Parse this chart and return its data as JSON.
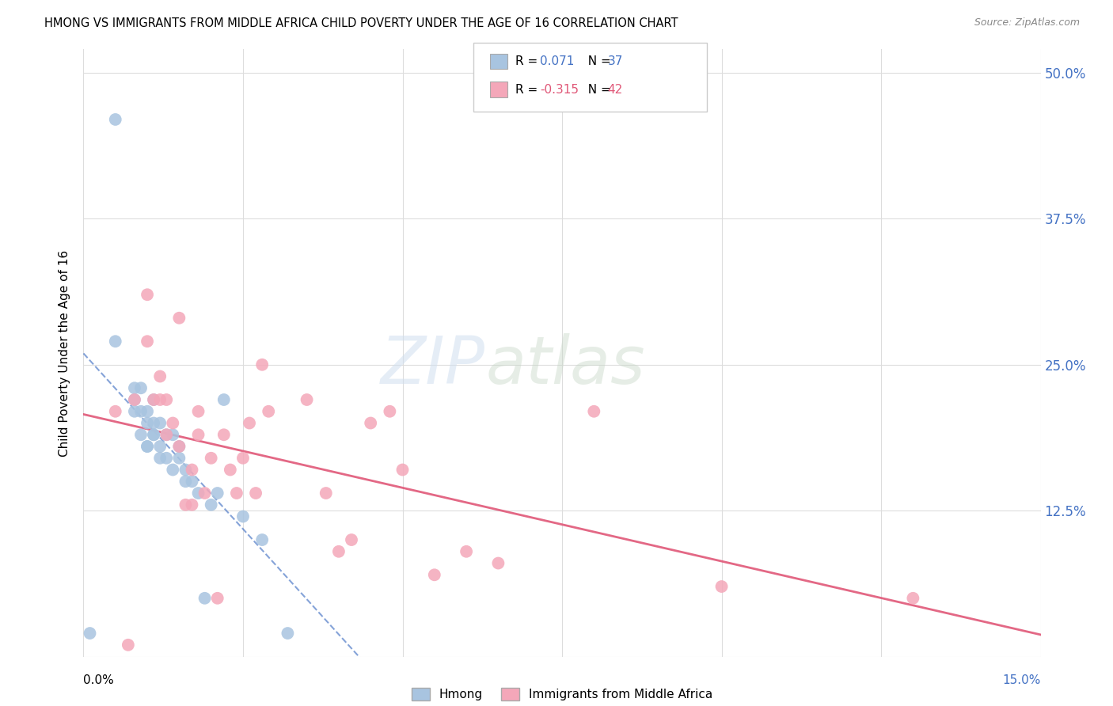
{
  "title": "HMONG VS IMMIGRANTS FROM MIDDLE AFRICA CHILD POVERTY UNDER THE AGE OF 16 CORRELATION CHART",
  "source": "Source: ZipAtlas.com",
  "ylabel": "Child Poverty Under the Age of 16",
  "ytick_labels": [
    "",
    "12.5%",
    "25.0%",
    "37.5%",
    "50.0%"
  ],
  "ytick_values": [
    0,
    12.5,
    25.0,
    37.5,
    50.0
  ],
  "xlim": [
    0,
    15
  ],
  "ylim": [
    0,
    52
  ],
  "legend_label_hmong": "Hmong",
  "legend_label_middle_africa": "Immigrants from Middle Africa",
  "hmong_color": "#a8c4e0",
  "hmong_line_color": "#4472c4",
  "middle_africa_color": "#f4a7b9",
  "middle_africa_line_color": "#e05878",
  "watermark_zip": "ZIP",
  "watermark_atlas": "atlas",
  "background_color": "#ffffff",
  "grid_color": "#dddddd",
  "hmong_x": [
    0.1,
    0.5,
    0.5,
    0.8,
    0.8,
    0.8,
    0.9,
    0.9,
    0.9,
    1.0,
    1.0,
    1.0,
    1.0,
    1.1,
    1.1,
    1.1,
    1.1,
    1.2,
    1.2,
    1.2,
    1.3,
    1.3,
    1.4,
    1.4,
    1.5,
    1.5,
    1.6,
    1.6,
    1.7,
    1.8,
    1.9,
    2.0,
    2.1,
    2.2,
    2.5,
    2.8,
    3.2
  ],
  "hmong_y": [
    2.0,
    46.0,
    27.0,
    23.0,
    22.0,
    21.0,
    19.0,
    21.0,
    23.0,
    18.0,
    18.0,
    20.0,
    21.0,
    19.0,
    19.0,
    20.0,
    22.0,
    17.0,
    18.0,
    20.0,
    17.0,
    19.0,
    16.0,
    19.0,
    18.0,
    17.0,
    16.0,
    15.0,
    15.0,
    14.0,
    5.0,
    13.0,
    14.0,
    22.0,
    12.0,
    10.0,
    2.0
  ],
  "middle_africa_x": [
    0.5,
    0.7,
    0.8,
    1.0,
    1.0,
    1.1,
    1.2,
    1.2,
    1.3,
    1.3,
    1.4,
    1.5,
    1.5,
    1.6,
    1.7,
    1.7,
    1.8,
    1.8,
    1.9,
    2.0,
    2.1,
    2.2,
    2.3,
    2.4,
    2.5,
    2.6,
    2.7,
    2.8,
    2.9,
    3.5,
    3.8,
    4.0,
    4.2,
    4.5,
    4.8,
    5.0,
    5.5,
    6.0,
    6.5,
    8.0,
    10.0,
    13.0
  ],
  "middle_africa_y": [
    21.0,
    1.0,
    22.0,
    31.0,
    27.0,
    22.0,
    22.0,
    24.0,
    22.0,
    19.0,
    20.0,
    29.0,
    18.0,
    13.0,
    13.0,
    16.0,
    19.0,
    21.0,
    14.0,
    17.0,
    5.0,
    19.0,
    16.0,
    14.0,
    17.0,
    20.0,
    14.0,
    25.0,
    21.0,
    22.0,
    14.0,
    9.0,
    10.0,
    20.0,
    21.0,
    16.0,
    7.0,
    9.0,
    8.0,
    21.0,
    6.0,
    5.0
  ]
}
